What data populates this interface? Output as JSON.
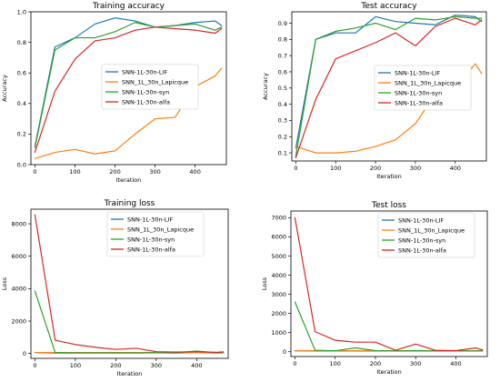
{
  "chart_data": [
    {
      "type": "line",
      "title": "Training accuracy",
      "xlabel": "Iteration",
      "ylabel": "Accuracy",
      "xlim": [
        -10,
        478
      ],
      "ylim": [
        0,
        1.0
      ],
      "xticks": [
        0,
        100,
        200,
        300,
        400
      ],
      "yticks": [
        0.0,
        0.2,
        0.4,
        0.6,
        0.8,
        1.0
      ],
      "ytick_labels": [
        "0.0",
        "0.2",
        "0.4",
        "0.6",
        "0.8",
        "1.0"
      ],
      "legend_position": "center-right",
      "series": [
        {
          "name": "SNN-1L-30n-LIF",
          "color": "#1f77b4",
          "x": [
            0,
            50,
            100,
            150,
            200,
            250,
            300,
            350,
            400,
            450,
            466
          ],
          "y": [
            0.12,
            0.77,
            0.83,
            0.92,
            0.96,
            0.94,
            0.9,
            0.91,
            0.93,
            0.94,
            0.91
          ]
        },
        {
          "name": "SNN_1L_30n_Lapicque",
          "color": "#ff7f0e",
          "x": [
            0,
            50,
            100,
            150,
            200,
            250,
            300,
            350,
            400,
            450,
            466
          ],
          "y": [
            0.04,
            0.08,
            0.1,
            0.07,
            0.09,
            0.2,
            0.3,
            0.31,
            0.51,
            0.58,
            0.63
          ]
        },
        {
          "name": "SNN-1L-30n-syn",
          "color": "#2ca02c",
          "x": [
            0,
            50,
            100,
            150,
            200,
            250,
            300,
            350,
            400,
            450,
            466
          ],
          "y": [
            0.11,
            0.75,
            0.83,
            0.83,
            0.87,
            0.93,
            0.9,
            0.91,
            0.92,
            0.88,
            0.9
          ]
        },
        {
          "name": "SNN-1L-30n-alfa",
          "color": "#d62728",
          "x": [
            0,
            50,
            100,
            150,
            200,
            250,
            300,
            350,
            400,
            450,
            466
          ],
          "y": [
            0.08,
            0.48,
            0.69,
            0.81,
            0.83,
            0.88,
            0.9,
            0.89,
            0.88,
            0.86,
            0.89
          ]
        }
      ]
    },
    {
      "type": "line",
      "title": "Test accuracy",
      "xlabel": "Iteration",
      "ylabel": "Accuracy",
      "xlim": [
        -10,
        478
      ],
      "ylim": [
        0.05,
        0.97
      ],
      "xticks": [
        0,
        100,
        200,
        300,
        400
      ],
      "yticks": [
        0.1,
        0.2,
        0.3,
        0.4,
        0.5,
        0.6,
        0.7,
        0.8,
        0.9
      ],
      "ytick_labels": [
        "0.1",
        "0.2",
        "0.3",
        "0.4",
        "0.5",
        "0.6",
        "0.7",
        "0.8",
        "0.9"
      ],
      "legend_position": "center-right",
      "series": [
        {
          "name": "SNN-1L-30n-LIF",
          "color": "#1f77b4",
          "x": [
            0,
            50,
            100,
            150,
            200,
            250,
            300,
            350,
            400,
            450,
            466
          ],
          "y": [
            0.13,
            0.8,
            0.84,
            0.84,
            0.94,
            0.91,
            0.9,
            0.89,
            0.95,
            0.94,
            0.91
          ]
        },
        {
          "name": "SNN_1L_30n_Lapicque",
          "color": "#ff7f0e",
          "x": [
            0,
            50,
            100,
            150,
            200,
            250,
            300,
            350,
            400,
            450,
            466
          ],
          "y": [
            0.14,
            0.1,
            0.1,
            0.11,
            0.14,
            0.18,
            0.28,
            0.46,
            0.49,
            0.65,
            0.59
          ]
        },
        {
          "name": "SNN-1L-30n-syn",
          "color": "#2ca02c",
          "x": [
            0,
            50,
            100,
            150,
            200,
            250,
            300,
            350,
            400,
            450,
            466
          ],
          "y": [
            0.08,
            0.8,
            0.85,
            0.87,
            0.9,
            0.86,
            0.93,
            0.92,
            0.94,
            0.93,
            0.93
          ]
        },
        {
          "name": "SNN-1L-30n-alfa",
          "color": "#d62728",
          "x": [
            0,
            50,
            100,
            150,
            200,
            250,
            300,
            350,
            400,
            450,
            466
          ],
          "y": [
            0.07,
            0.43,
            0.68,
            0.73,
            0.78,
            0.84,
            0.76,
            0.88,
            0.93,
            0.89,
            0.92
          ]
        }
      ]
    },
    {
      "type": "line",
      "title": "Training loss",
      "xlabel": "Iteration",
      "ylabel": "Loss",
      "xlim": [
        -10,
        478
      ],
      "ylim": [
        -300,
        8900
      ],
      "xticks": [
        0,
        100,
        200,
        300,
        400
      ],
      "yticks": [
        0,
        2000,
        4000,
        6000,
        8000
      ],
      "ytick_labels": [
        "0",
        "2000",
        "4000",
        "6000",
        "8000"
      ],
      "legend_position": "top-right",
      "series": [
        {
          "name": "SNN-1L-30n-LIF",
          "color": "#1f77b4",
          "x": [
            0,
            50,
            100,
            150,
            200,
            250,
            300,
            350,
            400,
            450,
            466
          ],
          "y": [
            60,
            30,
            30,
            30,
            30,
            30,
            40,
            30,
            60,
            30,
            40
          ]
        },
        {
          "name": "SNN_1L_30n_Lapicque",
          "color": "#ff7f0e",
          "x": [
            0,
            50,
            100,
            150,
            200,
            250,
            300,
            350,
            400,
            450,
            466
          ],
          "y": [
            60,
            60,
            60,
            60,
            60,
            60,
            60,
            60,
            60,
            60,
            60
          ]
        },
        {
          "name": "SNN-1L-30n-syn",
          "color": "#2ca02c",
          "x": [
            0,
            50,
            100,
            150,
            200,
            250,
            300,
            350,
            400,
            450,
            466
          ],
          "y": [
            3850,
            60,
            40,
            40,
            40,
            40,
            50,
            40,
            150,
            40,
            80
          ]
        },
        {
          "name": "SNN-1L-30n-alfa",
          "color": "#d62728",
          "x": [
            0,
            50,
            100,
            150,
            200,
            250,
            300,
            350,
            400,
            450,
            466
          ],
          "y": [
            8550,
            820,
            550,
            380,
            250,
            320,
            110,
            90,
            110,
            70,
            100
          ]
        }
      ]
    },
    {
      "type": "line",
      "title": "Test loss",
      "xlabel": "Iteration",
      "ylabel": "Loss",
      "xlim": [
        -10,
        478
      ],
      "ylim": [
        -250,
        7350
      ],
      "xticks": [
        0,
        100,
        200,
        300,
        400
      ],
      "yticks": [
        0,
        1000,
        2000,
        3000,
        4000,
        5000,
        6000,
        7000
      ],
      "ytick_labels": [
        "0",
        "1000",
        "2000",
        "3000",
        "4000",
        "5000",
        "6000",
        "7000"
      ],
      "legend_position": "top-right",
      "series": [
        {
          "name": "SNN-1L-30n-LIF",
          "color": "#1f77b4",
          "x": [
            0,
            50,
            100,
            150,
            200,
            250,
            300,
            350,
            400,
            450,
            466
          ],
          "y": [
            50,
            40,
            40,
            40,
            40,
            40,
            40,
            40,
            40,
            40,
            40
          ]
        },
        {
          "name": "SNN_1L_30n_Lapicque",
          "color": "#ff7f0e",
          "x": [
            0,
            50,
            100,
            150,
            200,
            250,
            300,
            350,
            400,
            450,
            466
          ],
          "y": [
            50,
            50,
            50,
            50,
            50,
            50,
            50,
            50,
            50,
            50,
            50
          ]
        },
        {
          "name": "SNN-1L-30n-syn",
          "color": "#2ca02c",
          "x": [
            0,
            50,
            100,
            150,
            200,
            250,
            300,
            350,
            400,
            450,
            466
          ],
          "y": [
            2600,
            80,
            50,
            200,
            60,
            40,
            60,
            40,
            40,
            40,
            40
          ]
        },
        {
          "name": "SNN-1L-30n-alfa",
          "color": "#d62728",
          "x": [
            0,
            50,
            100,
            150,
            200,
            250,
            300,
            350,
            400,
            450,
            466
          ],
          "y": [
            7000,
            1050,
            600,
            500,
            500,
            80,
            400,
            70,
            60,
            200,
            100
          ]
        }
      ]
    }
  ]
}
